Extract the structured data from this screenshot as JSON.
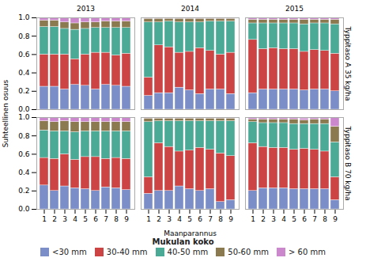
{
  "chart_data": {
    "type": "bar",
    "stacked": true,
    "xlabel": "Maanparannus",
    "ylabel": "Suhteellinen osuus",
    "legend_title": "Mukulan koko",
    "legend": "bottom",
    "categories": [
      "1",
      "2",
      "3",
      "4",
      "5",
      "6",
      "7",
      "8",
      "9"
    ],
    "ylim": [
      0,
      1
    ],
    "yticks": [
      {
        "value": 0,
        "label": "0.0"
      },
      0.2,
      0.4,
      0.6,
      0.8,
      {
        "value": 1,
        "label": "1.0"
      }
    ],
    "facet_columns": [
      "2013",
      "2014",
      "2015"
    ],
    "facet_rows": [
      "Typpitaso A 35 kg/ha",
      "Typpitaso B 70 kg/ha"
    ],
    "panels": [
      {
        "row": "Typpitaso A 35 kg/ha",
        "column": "2013",
        "series": [
          {
            "name": "<30 mm",
            "color": "#7b8ec8",
            "values": [
              0.25,
              0.25,
              0.22,
              0.27,
              0.26,
              0.22,
              0.27,
              0.26,
              0.25
            ]
          },
          {
            "name": "30-40 mm",
            "color": "#cc4444",
            "values": [
              0.35,
              0.35,
              0.38,
              0.28,
              0.34,
              0.4,
              0.35,
              0.33,
              0.36
            ]
          },
          {
            "name": "40-50 mm",
            "color": "#4aaa96",
            "values": [
              0.3,
              0.3,
              0.28,
              0.32,
              0.28,
              0.27,
              0.27,
              0.3,
              0.28
            ]
          },
          {
            "name": "50-60 mm",
            "color": "#8b7a50",
            "values": [
              0.07,
              0.07,
              0.07,
              0.07,
              0.07,
              0.06,
              0.07,
              0.07,
              0.07
            ]
          },
          {
            "name": "> 60 mm",
            "color": "#cc88cc",
            "values": [
              0.03,
              0.03,
              0.05,
              0.06,
              0.05,
              0.05,
              0.04,
              0.04,
              0.04
            ]
          }
        ]
      },
      {
        "row": "Typpitaso A 35 kg/ha",
        "column": "2014",
        "series": [
          {
            "name": "<30 mm",
            "color": "#7b8ec8",
            "values": [
              0.15,
              0.18,
              0.18,
              0.24,
              0.21,
              0.17,
              0.22,
              0.22,
              0.17
            ]
          },
          {
            "name": "30-40 mm",
            "color": "#cc4444",
            "values": [
              0.2,
              0.52,
              0.5,
              0.38,
              0.42,
              0.5,
              0.42,
              0.38,
              0.45
            ]
          },
          {
            "name": "40-50 mm",
            "color": "#4aaa96",
            "values": [
              0.6,
              0.25,
              0.28,
              0.33,
              0.32,
              0.28,
              0.32,
              0.36,
              0.34
            ]
          },
          {
            "name": "50-60 mm",
            "color": "#8b7a50",
            "values": [
              0.04,
              0.04,
              0.03,
              0.04,
              0.04,
              0.04,
              0.03,
              0.03,
              0.03
            ]
          },
          {
            "name": "> 60 mm",
            "color": "#cc88cc",
            "values": [
              0.01,
              0.01,
              0.01,
              0.01,
              0.01,
              0.01,
              0.01,
              0.01,
              0.01
            ]
          }
        ]
      },
      {
        "row": "Typpitaso A 35 kg/ha",
        "column": "2015",
        "series": [
          {
            "name": "<30 mm",
            "color": "#7b8ec8",
            "values": [
              0.18,
              0.22,
              0.22,
              0.22,
              0.22,
              0.21,
              0.22,
              0.22,
              0.2
            ]
          },
          {
            "name": "30-40 mm",
            "color": "#cc4444",
            "values": [
              0.58,
              0.44,
              0.45,
              0.44,
              0.44,
              0.42,
              0.43,
              0.42,
              0.41
            ]
          },
          {
            "name": "40-50 mm",
            "color": "#4aaa96",
            "values": [
              0.18,
              0.28,
              0.27,
              0.28,
              0.28,
              0.3,
              0.29,
              0.3,
              0.32
            ]
          },
          {
            "name": "50-60 mm",
            "color": "#8b7a50",
            "values": [
              0.04,
              0.04,
              0.04,
              0.04,
              0.04,
              0.05,
              0.04,
              0.04,
              0.05
            ]
          },
          {
            "name": "> 60 mm",
            "color": "#cc88cc",
            "values": [
              0.02,
              0.02,
              0.02,
              0.02,
              0.02,
              0.02,
              0.02,
              0.02,
              0.02
            ]
          }
        ]
      },
      {
        "row": "Typpitaso B 70 kg/ha",
        "column": "2013",
        "series": [
          {
            "name": "<30 mm",
            "color": "#7b8ec8",
            "values": [
              0.26,
              0.2,
              0.25,
              0.23,
              0.22,
              0.2,
              0.24,
              0.23,
              0.21
            ]
          },
          {
            "name": "30-40 mm",
            "color": "#cc4444",
            "values": [
              0.3,
              0.35,
              0.35,
              0.31,
              0.35,
              0.37,
              0.31,
              0.33,
              0.34
            ]
          },
          {
            "name": "40-50 mm",
            "color": "#4aaa96",
            "values": [
              0.3,
              0.3,
              0.25,
              0.3,
              0.28,
              0.28,
              0.3,
              0.29,
              0.3
            ]
          },
          {
            "name": "50-60 mm",
            "color": "#8b7a50",
            "values": [
              0.1,
              0.1,
              0.11,
              0.11,
              0.1,
              0.1,
              0.1,
              0.1,
              0.1
            ]
          },
          {
            "name": "> 60 mm",
            "color": "#cc88cc",
            "values": [
              0.04,
              0.05,
              0.04,
              0.05,
              0.05,
              0.05,
              0.05,
              0.05,
              0.05
            ]
          }
        ]
      },
      {
        "row": "Typpitaso B 70 kg/ha",
        "column": "2014",
        "series": [
          {
            "name": "<30 mm",
            "color": "#7b8ec8",
            "values": [
              0.17,
              0.2,
              0.2,
              0.25,
              0.22,
              0.2,
              0.22,
              0.08,
              0.1
            ]
          },
          {
            "name": "30-40 mm",
            "color": "#cc4444",
            "values": [
              0.18,
              0.52,
              0.48,
              0.38,
              0.42,
              0.47,
              0.43,
              0.53,
              0.48
            ]
          },
          {
            "name": "40-50 mm",
            "color": "#4aaa96",
            "values": [
              0.6,
              0.24,
              0.28,
              0.33,
              0.32,
              0.29,
              0.31,
              0.35,
              0.38
            ]
          },
          {
            "name": "50-60 mm",
            "color": "#8b7a50",
            "values": [
              0.04,
              0.03,
              0.03,
              0.03,
              0.03,
              0.03,
              0.03,
              0.03,
              0.03
            ]
          },
          {
            "name": "> 60 mm",
            "color": "#cc88cc",
            "values": [
              0.01,
              0.01,
              0.01,
              0.01,
              0.01,
              0.01,
              0.01,
              0.01,
              0.01
            ]
          }
        ]
      },
      {
        "row": "Typpitaso B 70 kg/ha",
        "column": "2015",
        "series": [
          {
            "name": "<30 mm",
            "color": "#7b8ec8",
            "values": [
              0.2,
              0.23,
              0.23,
              0.23,
              0.22,
              0.22,
              0.22,
              0.22,
              0.1
            ]
          },
          {
            "name": "30-40 mm",
            "color": "#cc4444",
            "values": [
              0.52,
              0.45,
              0.44,
              0.44,
              0.43,
              0.44,
              0.43,
              0.41,
              0.25
            ]
          },
          {
            "name": "40-50 mm",
            "color": "#4aaa96",
            "values": [
              0.23,
              0.26,
              0.27,
              0.27,
              0.28,
              0.27,
              0.28,
              0.3,
              0.38
            ]
          },
          {
            "name": "50-60 mm",
            "color": "#8b7a50",
            "values": [
              0.03,
              0.04,
              0.04,
              0.04,
              0.05,
              0.04,
              0.05,
              0.05,
              0.17
            ]
          },
          {
            "name": "> 60 mm",
            "color": "#cc88cc",
            "values": [
              0.02,
              0.02,
              0.02,
              0.02,
              0.02,
              0.02,
              0.02,
              0.02,
              0.1
            ]
          }
        ]
      }
    ]
  }
}
